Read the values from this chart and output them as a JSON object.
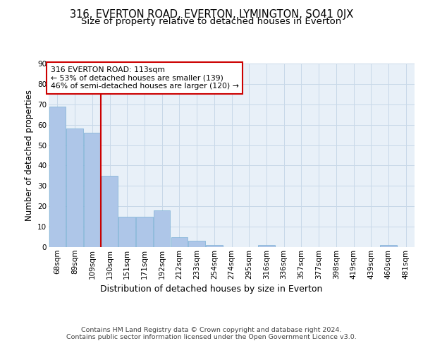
{
  "title1": "316, EVERTON ROAD, EVERTON, LYMINGTON, SO41 0JX",
  "title2": "Size of property relative to detached houses in Everton",
  "xlabel": "Distribution of detached houses by size in Everton",
  "ylabel": "Number of detached properties",
  "categories": [
    "68sqm",
    "89sqm",
    "109sqm",
    "130sqm",
    "151sqm",
    "171sqm",
    "192sqm",
    "212sqm",
    "233sqm",
    "254sqm",
    "274sqm",
    "295sqm",
    "316sqm",
    "336sqm",
    "357sqm",
    "377sqm",
    "398sqm",
    "419sqm",
    "439sqm",
    "460sqm",
    "481sqm"
  ],
  "values": [
    69,
    58,
    56,
    35,
    15,
    15,
    18,
    5,
    3,
    1,
    0,
    0,
    1,
    0,
    0,
    0,
    0,
    0,
    0,
    1,
    0
  ],
  "bar_color": "#aec6e8",
  "bar_edge_color": "#7aafd4",
  "grid_color": "#c8d8e8",
  "bg_color": "#e8f0f8",
  "vline_x": 2.5,
  "vline_color": "#cc0000",
  "annotation_text": "316 EVERTON ROAD: 113sqm\n← 53% of detached houses are smaller (139)\n46% of semi-detached houses are larger (120) →",
  "annotation_box_color": "#ffffff",
  "annotation_box_edge": "#cc0000",
  "ylim": [
    0,
    90
  ],
  "yticks": [
    0,
    10,
    20,
    30,
    40,
    50,
    60,
    70,
    80,
    90
  ],
  "footer": "Contains HM Land Registry data © Crown copyright and database right 2024.\nContains public sector information licensed under the Open Government Licence v3.0.",
  "title1_fontsize": 10.5,
  "title2_fontsize": 9.5,
  "xlabel_fontsize": 9,
  "ylabel_fontsize": 8.5,
  "tick_fontsize": 7.5,
  "annotation_fontsize": 7.8,
  "footer_fontsize": 6.8
}
